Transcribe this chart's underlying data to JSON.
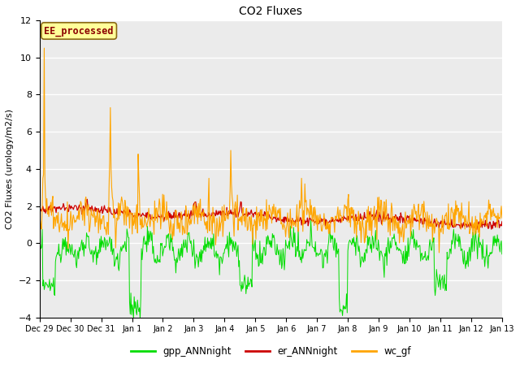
{
  "title": "CO2 Fluxes",
  "ylabel": "CO2 Fluxes (urology/m2/s)",
  "ylim": [
    -4,
    12
  ],
  "yticks": [
    -4,
    -2,
    0,
    2,
    4,
    6,
    8,
    10,
    12
  ],
  "annotation_text": "EE_processed",
  "annotation_color": "#8B0000",
  "annotation_bg": "#FFFF99",
  "annotation_border": "#8B6914",
  "colors": {
    "gpp": "#00DD00",
    "er": "#CC0000",
    "wc": "#FFA500"
  },
  "legend_labels": [
    "gpp_ANNnight",
    "er_ANNnight",
    "wc_gf"
  ],
  "background_color": "#EBEBEB",
  "grid_color": "#FFFFFF",
  "num_points": 700,
  "x_tick_labels": [
    "Dec 29",
    "Dec 30",
    "Dec 31",
    "Jan 1",
    "Jan 2",
    "Jan 3",
    "Jan 4",
    "Jan 5",
    "Jan 6",
    "Jan 7",
    "Jan 8",
    "Jan 9",
    "Jan 10",
    "Jan 11",
    "Jan 12",
    "Jan 13"
  ],
  "figsize": [
    6.4,
    4.8
  ],
  "dpi": 100
}
